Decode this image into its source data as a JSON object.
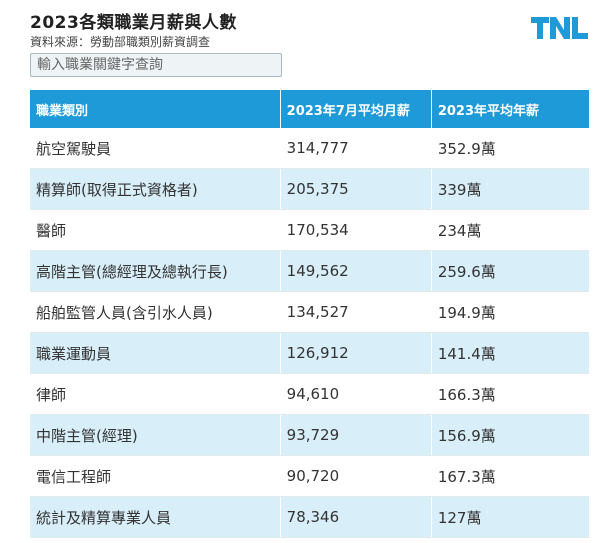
{
  "header": {
    "title": "2023各類職業月薪與人數",
    "source": "資料來源：勞動部職類別薪資調查",
    "logo_text": "TNL",
    "logo_color": "#1d9ad7"
  },
  "search": {
    "placeholder": "輸入職業關鍵字查詢",
    "value": ""
  },
  "table": {
    "header_color": "#1d9ad7",
    "alt_row_color": "#d8eef8",
    "columns": [
      "職業類別",
      "2023年7月平均月薪",
      "2023年平均年薪"
    ],
    "rows": [
      {
        "occupation": "航空駕駛員",
        "monthly": "314,777",
        "annual": "352.9萬"
      },
      {
        "occupation": "精算師(取得正式資格者)",
        "monthly": "205,375",
        "annual": "339萬"
      },
      {
        "occupation": "醫師",
        "monthly": "170,534",
        "annual": "234萬"
      },
      {
        "occupation": "高階主管(總經理及總執行長)",
        "monthly": "149,562",
        "annual": "259.6萬"
      },
      {
        "occupation": "船舶監管人員(含引水人員)",
        "monthly": "134,527",
        "annual": "194.9萬"
      },
      {
        "occupation": "職業運動員",
        "monthly": "126,912",
        "annual": "141.4萬"
      },
      {
        "occupation": "律師",
        "monthly": "94,610",
        "annual": "166.3萬"
      },
      {
        "occupation": "中階主管(經理)",
        "monthly": "93,729",
        "annual": "156.9萬"
      },
      {
        "occupation": "電信工程師",
        "monthly": "90,720",
        "annual": "167.3萬"
      },
      {
        "occupation": "統計及精算專業人員",
        "monthly": "78,346",
        "annual": "127萬"
      }
    ]
  }
}
